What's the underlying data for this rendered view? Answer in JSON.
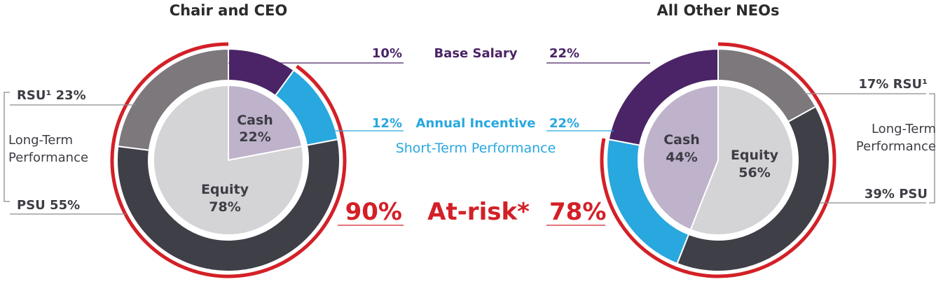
{
  "colors": {
    "base_salary": "#4a2466",
    "annual_incentive": "#29a7df",
    "psu": "#3e3f47",
    "rsu": "#7c787c",
    "cash": "#bfb2cb",
    "equity": "#d4d3d6",
    "at_risk": "#d32027",
    "rule": "#8b8b8b"
  },
  "center": {
    "base_salary_label": "Base Salary",
    "annual_incentive_label": "Annual Incentive",
    "short_term_label": "Short-Term Performance",
    "at_risk_label": "At-risk*"
  },
  "chart_data": [
    {
      "type": "pie",
      "title": "Chair and CEO",
      "outer_ring": [
        {
          "name": "Base Salary",
          "value": 10
        },
        {
          "name": "Annual Incentive",
          "value": 12
        },
        {
          "name": "PSU",
          "value": 55
        },
        {
          "name": "RSU",
          "value": 23
        }
      ],
      "inner_pie": [
        {
          "name": "Cash",
          "value": 22
        },
        {
          "name": "Equity",
          "value": 78
        }
      ],
      "at_risk": 90,
      "labels": {
        "base_salary": "10%",
        "annual_incentive": "12%",
        "rsu": "RSU¹  23%",
        "psu": "PSU  55%",
        "ltp_line1": "Long-Term",
        "ltp_line2": "Performance",
        "cash_name": "Cash",
        "cash_pct": "22%",
        "equity_name": "Equity",
        "equity_pct": "78%",
        "at_risk": "90%"
      }
    },
    {
      "type": "pie",
      "title": "All Other NEOs",
      "outer_ring": [
        {
          "name": "RSU",
          "value": 17
        },
        {
          "name": "PSU",
          "value": 39
        },
        {
          "name": "Annual Incentive",
          "value": 22
        },
        {
          "name": "Base Salary",
          "value": 22
        }
      ],
      "inner_pie": [
        {
          "name": "Equity",
          "value": 56
        },
        {
          "name": "Cash",
          "value": 44
        }
      ],
      "at_risk": 78,
      "labels": {
        "base_salary": "22%",
        "annual_incentive": "22%",
        "rsu": "17%  RSU¹",
        "psu": "39%  PSU",
        "ltp_line1": "Long-Term",
        "ltp_line2": "Performance",
        "cash_name": "Cash",
        "cash_pct": "44%",
        "equity_name": "Equity",
        "equity_pct": "56%",
        "at_risk": "78%"
      }
    }
  ]
}
